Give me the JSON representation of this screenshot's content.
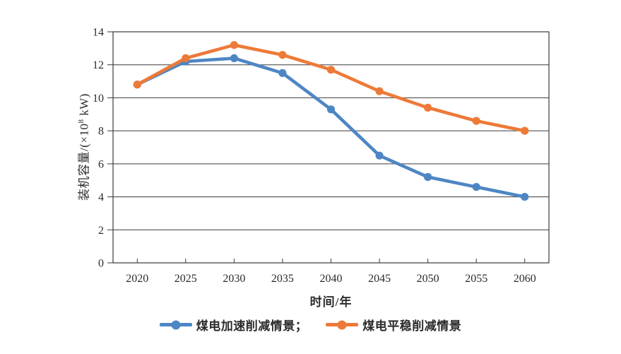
{
  "chart_data": {
    "type": "line",
    "title": "",
    "xlabel": "时间/年",
    "ylabel": "装机容量/(×10⁸ kW)",
    "ylabel_parts": {
      "pre": "装机容量/(×10",
      "sup": "8",
      "post": " kW)"
    },
    "x": [
      2020,
      2025,
      2030,
      2035,
      2040,
      2045,
      2050,
      2055,
      2060
    ],
    "ylim": [
      0,
      14
    ],
    "yticks": [
      0,
      2,
      4,
      6,
      8,
      10,
      12,
      14
    ],
    "ytick_step": 2,
    "grid": "horizontal",
    "legend_position": "bottom",
    "series": [
      {
        "name": "煤电加速削减情景",
        "legend_label": "煤电加速削减情景；",
        "color": "#4E86C4",
        "values": [
          10.8,
          12.2,
          12.4,
          11.5,
          9.3,
          6.5,
          5.2,
          4.6,
          4.0
        ]
      },
      {
        "name": "煤电平稳削减情景",
        "legend_label": "煤电平稳削减情景",
        "color": "#ED7A38",
        "values": [
          10.8,
          12.4,
          13.2,
          12.6,
          11.7,
          10.4,
          9.4,
          8.6,
          8.0
        ]
      }
    ]
  },
  "colors": {
    "axis": "#3A3A3A",
    "text": "#2B2B2B",
    "background": "#FFFFFF",
    "series_blue": "#4E86C4",
    "series_orange": "#ED7A38"
  }
}
